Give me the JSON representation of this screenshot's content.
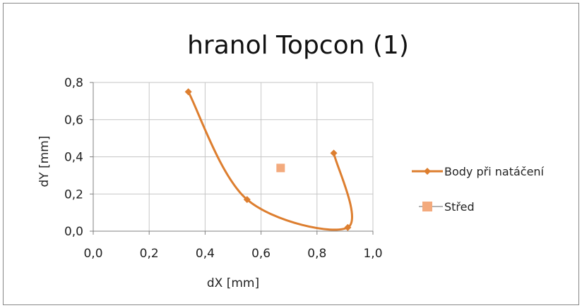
{
  "chart_data": {
    "type": "scatter",
    "title": "hranol Topcon (1)",
    "xlabel": "dX [mm]",
    "ylabel": "dY [mm]",
    "xlim": [
      0,
      1
    ],
    "ylim": [
      0,
      0.8
    ],
    "xticks": [
      0,
      0.2,
      0.4,
      0.6,
      0.8,
      1.0
    ],
    "yticks": [
      0,
      0.2,
      0.4,
      0.6,
      0.8
    ],
    "xtick_labels": [
      "0,0",
      "0,2",
      "0,4",
      "0,6",
      "0,8",
      "1,0"
    ],
    "ytick_labels": [
      "0,0",
      "0,2",
      "0,4",
      "0,6",
      "0,8"
    ],
    "grid": true,
    "legend_position": "right",
    "series": [
      {
        "name": "Body při natáčení",
        "style": "smooth-line-markers",
        "marker": "diamond",
        "color": "#dd7e2f",
        "points": [
          {
            "x": 0.34,
            "y": 0.75
          },
          {
            "x": 0.55,
            "y": 0.17
          },
          {
            "x": 0.91,
            "y": 0.02
          },
          {
            "x": 0.86,
            "y": 0.42
          }
        ]
      },
      {
        "name": "Střed",
        "style": "markers",
        "marker": "square",
        "color": "#f3aa7d",
        "points": [
          {
            "x": 0.67,
            "y": 0.34
          }
        ]
      }
    ]
  }
}
